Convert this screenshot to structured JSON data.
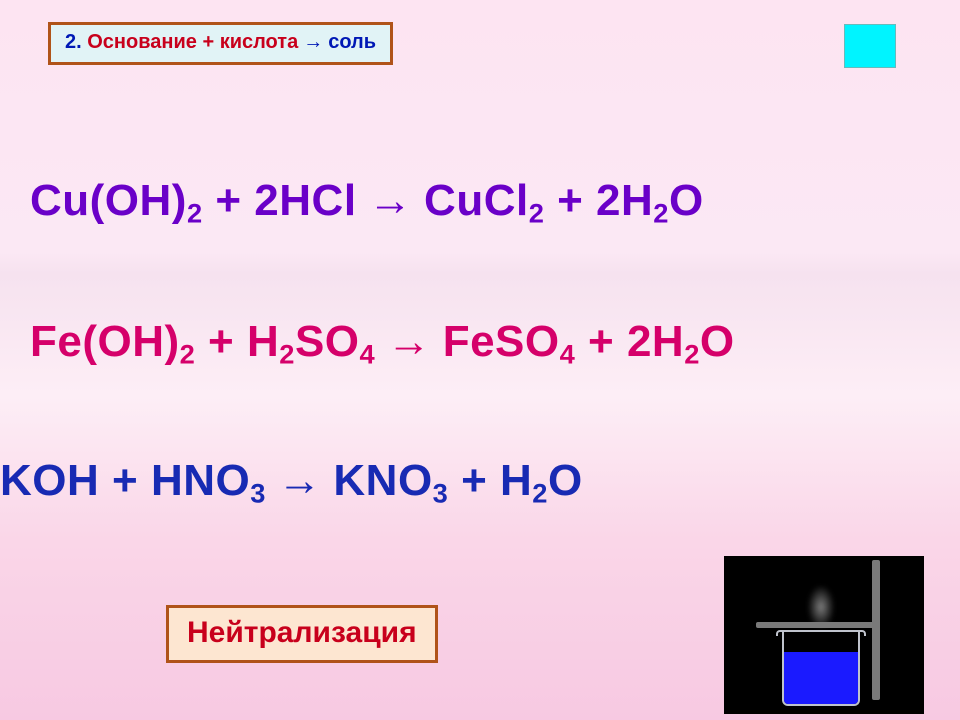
{
  "rule": {
    "number": "2.",
    "base_word": "Основание",
    "plus": " + ",
    "acid_word": "кислота",
    "arrow": " → ",
    "salt_word": "соль"
  },
  "equations": {
    "eq1": {
      "color": "#6a00c8",
      "r1a": "Cu(OH)",
      "r1a_sub": "2",
      "plus1": " + ",
      "r1b_pre": "2HCl",
      "arrow": " → ",
      "p1a": "CuCl",
      "p1a_sub": "2",
      "plus2": " + ",
      "p1b_pre": "2H",
      "p1b_sub": "2",
      "p1b_post": "O"
    },
    "eq2": {
      "color": "#d5006a",
      "r2a": "Fe(OH)",
      "r2a_sub": "2",
      "plus1": " + ",
      "r2b_a": "H",
      "r2b_a_sub": "2",
      "r2b_b": "SO",
      "r2b_b_sub": "4",
      "arrow": " → ",
      "p2a": "FeSO",
      "p2a_sub": "4",
      "plus2": " + ",
      "p2b_pre": "2H",
      "p2b_sub": "2",
      "p2b_post": "O"
    },
    "eq3": {
      "color": "#182ab3",
      "r3a": "KOH",
      "plus1": " + ",
      "r3b": "HNO",
      "r3b_sub": "3",
      "arrow": " → ",
      "p3a": "KNO",
      "p3a_sub": "3",
      "plus2": " + ",
      "p3b_a": "H",
      "p3b_a_sub": "2",
      "p3b_b": "O"
    }
  },
  "neutralization_label": "Нейтрализация",
  "beaker": {
    "liquid_color": "#1a1aff",
    "bg": "#000000"
  }
}
